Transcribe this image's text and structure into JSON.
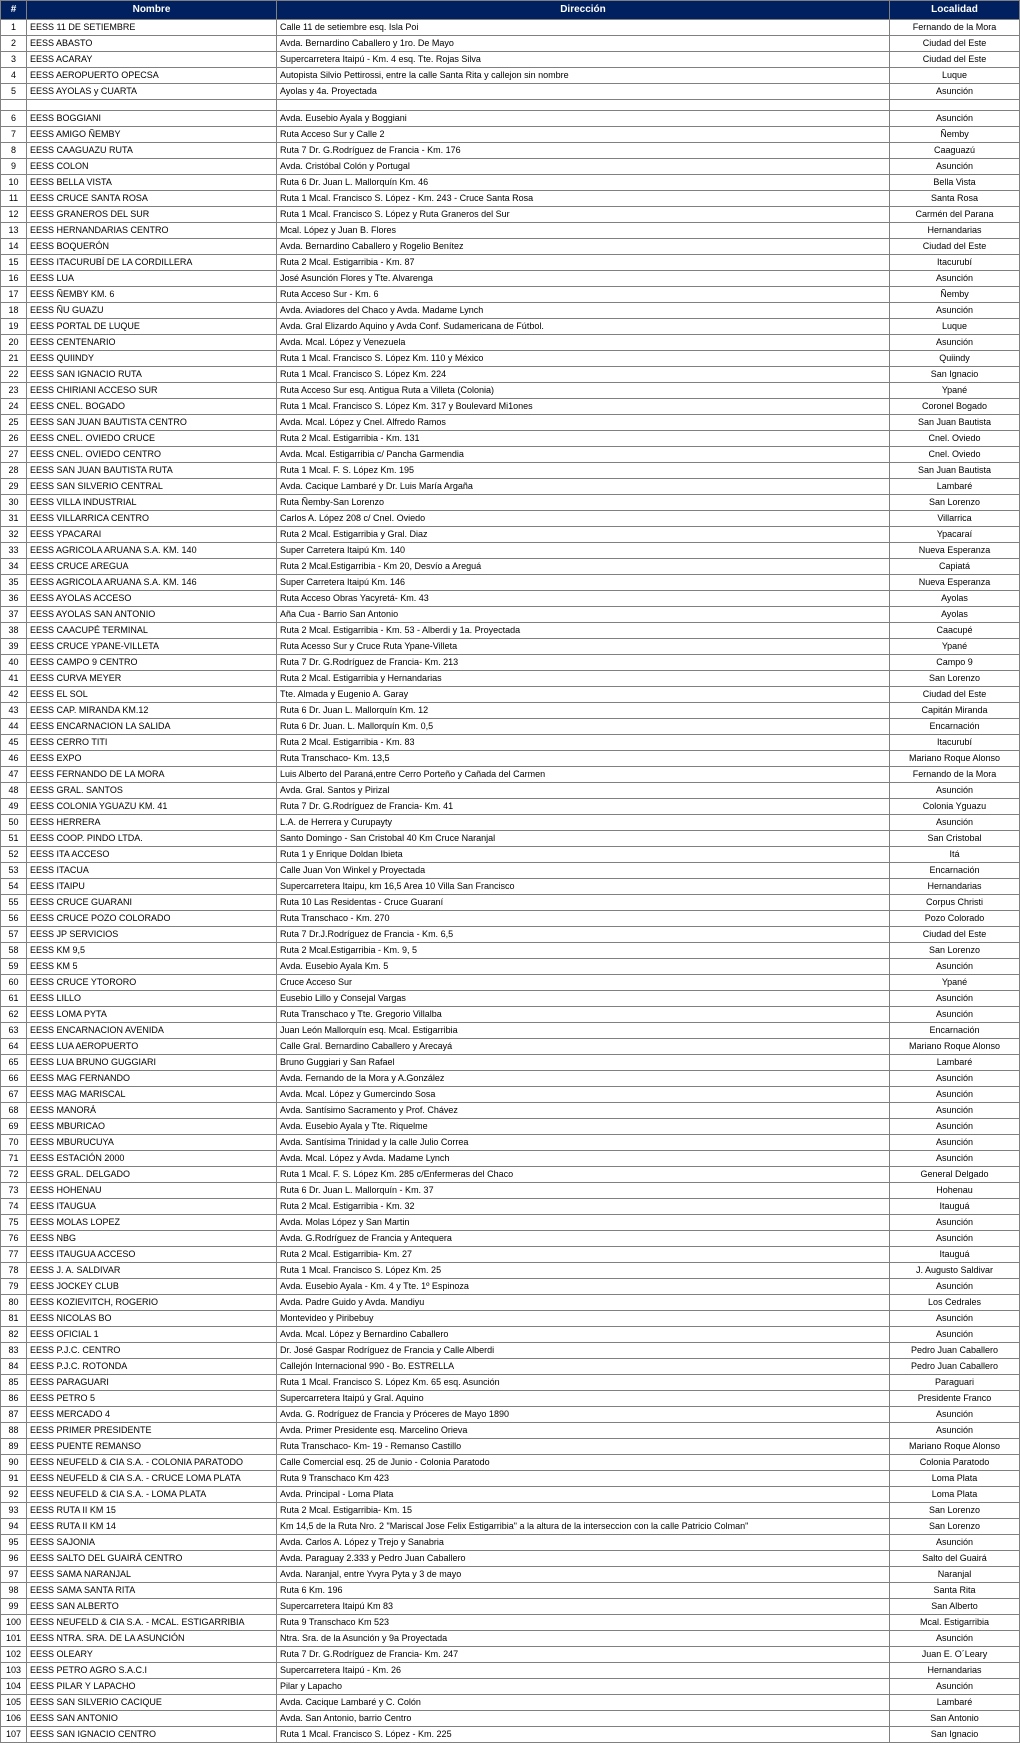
{
  "headers": {
    "num": "#",
    "nombre": "Nombre",
    "direccion": "Dirección",
    "localidad": "Localidad"
  },
  "rows": [
    {
      "n": "1",
      "nombre": "EESS 11 DE SETIEMBRE",
      "direccion": "Calle 11 de setiembre esq. Isla Poi",
      "localidad": "Fernando de la Mora"
    },
    {
      "n": "2",
      "nombre": "EESS ABASTO",
      "direccion": "Avda. Bernardino Caballero y 1ro. De Mayo",
      "localidad": "Ciudad del Este"
    },
    {
      "n": "3",
      "nombre": "EESS ACARAY",
      "direccion": "Supercarretera Itaipú - Km. 4 esq. Tte. Rojas Silva",
      "localidad": "Ciudad del Este"
    },
    {
      "n": "4",
      "nombre": "EESS AEROPUERTO OPECSA",
      "direccion": "Autopista Silvio Pettirossi, entre la calle Santa Rita y callejon sin nombre",
      "localidad": "Luque"
    },
    {
      "n": "5",
      "nombre": "EESS AYOLAS y CUARTA",
      "direccion": "Ayolas y 4a. Proyectada",
      "localidad": "Asunción"
    },
    {
      "n": "6",
      "nombre": "",
      "direccion": "",
      "localidad": "",
      "blank": true
    },
    {
      "n": "6",
      "nombre": "EESS BOGGIANI",
      "direccion": "Avda. Eusebio Ayala y Boggiani",
      "localidad": "Asunción"
    },
    {
      "n": "7",
      "nombre": "EESS AMIGO ÑEMBY",
      "direccion": "Ruta Acceso Sur y Calle 2",
      "localidad": "Ñemby"
    },
    {
      "n": "8",
      "nombre": "EESS CAAGUAZU RUTA",
      "direccion": "Ruta 7 Dr. G.Rodríguez de Francia - Km. 176",
      "localidad": "Caaguazú"
    },
    {
      "n": "9",
      "nombre": "EESS COLON",
      "direccion": "Avda. Cristóbal Colón y Portugal",
      "localidad": "Asunción"
    },
    {
      "n": "10",
      "nombre": "EESS BELLA VISTA",
      "direccion": "Ruta 6 Dr. Juan L. Mallorquín Km. 46",
      "localidad": "Bella Vista"
    },
    {
      "n": "11",
      "nombre": "EESS CRUCE SANTA ROSA",
      "direccion": "Ruta 1 Mcal. Francisco S. López - Km. 243 - Cruce Santa Rosa",
      "localidad": "Santa Rosa"
    },
    {
      "n": "12",
      "nombre": "EESS GRANEROS DEL SUR",
      "direccion": "Ruta 1 Mcal. Francisco S. López y Ruta Graneros del Sur",
      "localidad": "Carmén del Parana"
    },
    {
      "n": "13",
      "nombre": "EESS HERNANDARIAS CENTRO",
      "direccion": "Mcal. López y Juan B. Flores",
      "localidad": "Hernandarias"
    },
    {
      "n": "14",
      "nombre": "EESS BOQUERÓN",
      "direccion": "Avda. Bernardino Caballero y Rogelio Benítez",
      "localidad": "Ciudad del Este"
    },
    {
      "n": "15",
      "nombre": "EESS ITACURUBÍ DE LA CORDILLERA",
      "direccion": "Ruta 2 Mcal. Estigarribia - Km. 87",
      "localidad": "Itacurubí"
    },
    {
      "n": "16",
      "nombre": "EESS LUA",
      "direccion": "José Asunción Flores y Tte. Alvarenga",
      "localidad": "Asunción"
    },
    {
      "n": "17",
      "nombre": "EESS ÑEMBY KM. 6",
      "direccion": "Ruta Acceso Sur - Km. 6",
      "localidad": "Ñemby"
    },
    {
      "n": "18",
      "nombre": "EESS ÑU GUAZU",
      "direccion": "Avda. Aviadores del Chaco y Avda. Madame Lynch",
      "localidad": "Asunción"
    },
    {
      "n": "19",
      "nombre": "EESS PORTAL DE LUQUE",
      "direccion": "Avda. Gral Elizardo Aquino y Avda Conf. Sudamericana de Fútbol.",
      "localidad": "Luque"
    },
    {
      "n": "20",
      "nombre": "EESS CENTENARIO",
      "direccion": "Avda. Mcal. López y Venezuela",
      "localidad": "Asunción"
    },
    {
      "n": "21",
      "nombre": "EESS QUIINDY",
      "direccion": "Ruta 1 Mcal. Francisco S. López Km. 110 y México",
      "localidad": "Quiindy"
    },
    {
      "n": "22",
      "nombre": "EESS SAN IGNACIO RUTA",
      "direccion": "Ruta 1 Mcal. Francisco S. López  Km. 224",
      "localidad": "San Ignacio"
    },
    {
      "n": "23",
      "nombre": "EESS CHIRIANI ACCESO SUR",
      "direccion": "Ruta Acceso Sur esq. Antigua Ruta a Villeta (Colonia)",
      "localidad": "Ypané"
    },
    {
      "n": "24",
      "nombre": "EESS CNEL. BOGADO",
      "direccion": "Ruta 1 Mcal. Francisco S. López Km. 317 y Boulevard Mi1ones",
      "localidad": "Coronel Bogado"
    },
    {
      "n": "25",
      "nombre": "EESS SAN JUAN BAUTISTA CENTRO",
      "direccion": "Avda. Mcal. López y Cnel. Alfredo Ramos",
      "localidad": "San Juan Bautista"
    },
    {
      "n": "26",
      "nombre": "EESS CNEL. OVIEDO CRUCE",
      "direccion": "Ruta 2 Mcal. Estigarribia - Km. 131",
      "localidad": "Cnel. Oviedo"
    },
    {
      "n": "27",
      "nombre": "EESS CNEL. OVIEDO CENTRO",
      "direccion": "Avda. Mcal. Estigarribia c/ Pancha Garmendia",
      "localidad": "Cnel. Oviedo"
    },
    {
      "n": "28",
      "nombre": "EESS SAN JUAN BAUTISTA RUTA",
      "direccion": "Ruta 1 Mcal. F. S. López Km. 195",
      "localidad": "San Juan Bautista"
    },
    {
      "n": "29",
      "nombre": "EESS SAN SILVERIO CENTRAL",
      "direccion": "Avda. Cacique Lambaré y Dr. Luis María Argaña",
      "localidad": "Lambaré"
    },
    {
      "n": "30",
      "nombre": "EESS VILLA INDUSTRIAL",
      "direccion": "Ruta Ñemby-San Lorenzo",
      "localidad": "San Lorenzo"
    },
    {
      "n": "31",
      "nombre": "EESS VILLARRICA CENTRO",
      "direccion": "Carlos A. López  208 c/ Cnel. Oviedo",
      "localidad": "Villarrica"
    },
    {
      "n": "32",
      "nombre": "EESS YPACARAI",
      "direccion": "Ruta 2 Mcal. Estigarribia y Gral. Diaz",
      "localidad": "Ypacaraí"
    },
    {
      "n": "33",
      "nombre": "EESS AGRICOLA ARUANA S.A. KM. 140",
      "direccion": "Super Carretera Itaipú Km. 140",
      "localidad": "Nueva Esperanza"
    },
    {
      "n": "34",
      "nombre": "EESS CRUCE AREGUA",
      "direccion": "Ruta 2 Mcal.Estigarribia -  Km 20, Desvío a Areguá",
      "localidad": "Capiatá"
    },
    {
      "n": "35",
      "nombre": "EESS AGRICOLA ARUANA S.A. KM. 146",
      "direccion": "Super Carretera Itaipú Km. 146",
      "localidad": "Nueva Esperanza"
    },
    {
      "n": "36",
      "nombre": "EESS AYOLAS ACCESO",
      "direccion": "Ruta Acceso Obras Yacyretá- Km. 43",
      "localidad": "Ayolas"
    },
    {
      "n": "37",
      "nombre": "EESS AYOLAS SAN ANTONIO",
      "direccion": "Aña Cua - Barrio San Antonio",
      "localidad": "Ayolas"
    },
    {
      "n": "38",
      "nombre": "EESS CAACUPÉ TERMINAL",
      "direccion": "Ruta 2 Mcal. Estigarribia - Km. 53 - Alberdi y 1a. Proyectada",
      "localidad": "Caacupé"
    },
    {
      "n": "39",
      "nombre": "EESS CRUCE YPANE-VILLETA",
      "direccion": "Ruta Acesso Sur y Cruce Ruta Ypane-Villeta",
      "localidad": "Ypané"
    },
    {
      "n": "40",
      "nombre": "EESS CAMPO 9 CENTRO",
      "direccion": "Ruta 7 Dr. G.Rodríguez de Francia- Km. 213",
      "localidad": "Campo 9"
    },
    {
      "n": "41",
      "nombre": "EESS CURVA MEYER",
      "direccion": "Ruta 2 Mcal. Estigarribia y Hernandarias",
      "localidad": "San Lorenzo"
    },
    {
      "n": "42",
      "nombre": "EESS EL SOL",
      "direccion": "Tte. Almada y Eugenio A. Garay",
      "localidad": "Ciudad del Este"
    },
    {
      "n": "43",
      "nombre": "EESS CAP. MIRANDA KM.12",
      "direccion": "Ruta 6 Dr. Juan L. Mallorquín Km. 12",
      "localidad": "Capitán Miranda"
    },
    {
      "n": "44",
      "nombre": "EESS ENCARNACION LA SALIDA",
      "direccion": "Ruta 6 Dr. Juan. L. Mallorquín  Km. 0,5",
      "localidad": "Encarnación"
    },
    {
      "n": "45",
      "nombre": "EESS CERRO TITI",
      "direccion": "Ruta 2 Mcal. Estigarribia - Km. 83",
      "localidad": "Itacurubí"
    },
    {
      "n": "46",
      "nombre": "EESS EXPO",
      "direccion": "Ruta Transchaco- Km. 13,5",
      "localidad": "Mariano Roque Alonso"
    },
    {
      "n": "47",
      "nombre": "EESS FERNANDO DE LA MORA",
      "direccion": "Luis Alberto del Paraná,entre Cerro Porteño y Cañada del Carmen",
      "localidad": "Fernando de la Mora"
    },
    {
      "n": "48",
      "nombre": "EESS GRAL. SANTOS",
      "direccion": "Avda. Gral. Santos y Pirizal",
      "localidad": "Asunción"
    },
    {
      "n": "49",
      "nombre": "EESS COLONIA YGUAZU KM. 41",
      "direccion": "Ruta 7 Dr. G.Rodríguez de Francia- Km. 41",
      "localidad": "Colonia Yguazu"
    },
    {
      "n": "50",
      "nombre": "EESS HERRERA",
      "direccion": "L.A. de Herrera y Curupayty",
      "localidad": "Asunción"
    },
    {
      "n": "51",
      "nombre": "EESS COOP. PINDO LTDA.",
      "direccion": "Santo Domingo - San Cristobal 40 Km Cruce Naranjal",
      "localidad": "San Cristobal"
    },
    {
      "n": "52",
      "nombre": "EESS ITA ACCESO",
      "direccion": "Ruta 1 y Enrique Doldan Ibieta",
      "localidad": "Itá"
    },
    {
      "n": "53",
      "nombre": "EESS ITACUA",
      "direccion": "Calle Juan Von Winkel y Proyectada",
      "localidad": "Encarnación"
    },
    {
      "n": "54",
      "nombre": "EESS ITAIPU",
      "direccion": "Supercarretera Itaipu, km 16,5  Area 10 Villa San Francisco",
      "localidad": "Hernandarias"
    },
    {
      "n": "55",
      "nombre": "EESS CRUCE GUARANI",
      "direccion": "Ruta 10 Las Residentas - Cruce Guaraní",
      "localidad": "Corpus Christi"
    },
    {
      "n": "56",
      "nombre": "EESS CRUCE POZO COLORADO",
      "direccion": "Ruta Transchaco - Km. 270",
      "localidad": "Pozo Colorado"
    },
    {
      "n": "57",
      "nombre": "EESS JP SERVICIOS",
      "direccion": "Ruta 7 Dr.J.Rodríguez de Francia - Km. 6,5",
      "localidad": "Ciudad del Este"
    },
    {
      "n": "58",
      "nombre": "EESS KM 9,5",
      "direccion": "Ruta 2 Mcal.Estigarribia - Km. 9, 5",
      "localidad": "San Lorenzo"
    },
    {
      "n": "59",
      "nombre": "EESS KM 5",
      "direccion": "Avda. Eusebio Ayala Km. 5",
      "localidad": "Asunción"
    },
    {
      "n": "60",
      "nombre": "EESS CRUCE YTORORO",
      "direccion": "Cruce Acceso Sur",
      "localidad": "Ypané"
    },
    {
      "n": "61",
      "nombre": "EESS LILLO",
      "direccion": "Eusebio Lillo y Consejal Vargas",
      "localidad": "Asunción"
    },
    {
      "n": "62",
      "nombre": "EESS LOMA PYTA",
      "direccion": "Ruta Transchaco y Tte. Gregorio Villalba",
      "localidad": "Asunción"
    },
    {
      "n": "63",
      "nombre": "EESS ENCARNACION AVENIDA",
      "direccion": "Juan León Mallorquín esq. Mcal. Estigarribia",
      "localidad": "Encarnación"
    },
    {
      "n": "64",
      "nombre": "EESS LUA AEROPUERTO",
      "direccion": "Calle Gral. Bernardino Caballero y Arecayá",
      "localidad": "Mariano Roque Alonso"
    },
    {
      "n": "65",
      "nombre": "EESS LUA BRUNO GUGGIARI",
      "direccion": "Bruno Guggiari y San Rafael",
      "localidad": "Lambaré"
    },
    {
      "n": "66",
      "nombre": "EESS MAG FERNANDO",
      "direccion": "Avda. Fernando de la Mora y A.González",
      "localidad": "Asunción"
    },
    {
      "n": "67",
      "nombre": "EESS MAG MARISCAL",
      "direccion": "Avda. Mcal. López y Gumercindo  Sosa",
      "localidad": "Asunción"
    },
    {
      "n": "68",
      "nombre": "EESS MANORÁ",
      "direccion": "Avda. Santísimo Sacramento y Prof. Chávez",
      "localidad": "Asunción"
    },
    {
      "n": "69",
      "nombre": "EESS MBURICAO",
      "direccion": "Avda. Eusebio Ayala y Tte. Riquelme",
      "localidad": "Asunción"
    },
    {
      "n": "70",
      "nombre": "EESS MBURUCUYA",
      "direccion": "Avda. Santísima Trinidad y la calle Julio Correa",
      "localidad": "Asunción"
    },
    {
      "n": "71",
      "nombre": "EESS ESTACIÓN 2000",
      "direccion": "Avda. Mcal. López y Avda. Madame Lynch",
      "localidad": "Asunción"
    },
    {
      "n": "72",
      "nombre": "EESS GRAL. DELGADO",
      "direccion": "Ruta 1 Mcal. F. S. López Km. 285 c/Enfermeras del Chaco",
      "localidad": "General Delgado"
    },
    {
      "n": "73",
      "nombre": "EESS HOHENAU",
      "direccion": "Ruta 6 Dr. Juan L. Mallorquín - Km. 37",
      "localidad": "Hohenau"
    },
    {
      "n": "74",
      "nombre": "EESS ITAUGUA",
      "direccion": "Ruta 2  Mcal. Estigarribia - Km. 32",
      "localidad": "Itauguá"
    },
    {
      "n": "75",
      "nombre": "EESS MOLAS LOPEZ",
      "direccion": "Avda. Molas López y San Martin",
      "localidad": "Asunción"
    },
    {
      "n": "76",
      "nombre": "EESS NBG",
      "direccion": "Avda. G.Rodríguez de Francia y Antequera",
      "localidad": "Asunción"
    },
    {
      "n": "77",
      "nombre": "EESS ITAUGUA ACCESO",
      "direccion": "Ruta 2 Mcal. Estigarribia- Km. 27",
      "localidad": "Itauguá"
    },
    {
      "n": "78",
      "nombre": "EESS J. A. SALDIVAR",
      "direccion": "Ruta 1 Mcal. Francisco S. López Km. 25",
      "localidad": "J. Augusto Saldivar"
    },
    {
      "n": "79",
      "nombre": "EESS JOCKEY CLUB",
      "direccion": "Avda. Eusebio Ayala - Km. 4 y Tte. 1º Espinoza",
      "localidad": "Asunción"
    },
    {
      "n": "80",
      "nombre": "EESS KOZIEVITCH, ROGERIO",
      "direccion": "Avda. Padre Guido y Avda. Mandiyu",
      "localidad": "Los Cedrales"
    },
    {
      "n": "81",
      "nombre": "EESS NICOLAS BO",
      "direccion": "Montevideo y Piribebuy",
      "localidad": "Asunción"
    },
    {
      "n": "82",
      "nombre": "EESS OFICIAL 1",
      "direccion": "Avda. Mcal. López y Bernardino Caballero",
      "localidad": "Asunción"
    },
    {
      "n": "83",
      "nombre": "EESS P.J.C. CENTRO",
      "direccion": "Dr. José Gaspar Rodríguez de Francia y Calle Alberdi",
      "localidad": "Pedro Juan Caballero"
    },
    {
      "n": "84",
      "nombre": "EESS P.J.C. ROTONDA",
      "direccion": "Callejón Internacional 990 -  Bo. ESTRELLA",
      "localidad": "Pedro Juan Caballero"
    },
    {
      "n": "85",
      "nombre": "EESS PARAGUARI",
      "direccion": "Ruta 1 Mcal. Francisco S. López Km. 65 esq. Asunción",
      "localidad": "Paraguari"
    },
    {
      "n": "86",
      "nombre": "EESS PETRO 5",
      "direccion": "Supercarretera Itaipú y Gral. Aquino",
      "localidad": "Presidente Franco"
    },
    {
      "n": "87",
      "nombre": "EESS MERCADO 4",
      "direccion": "Avda. G. Rodríguez de Francia y Próceres de Mayo 1890",
      "localidad": "Asunción"
    },
    {
      "n": "88",
      "nombre": "EESS PRIMER PRESIDENTE",
      "direccion": "Avda. Primer Presidente esq. Marcelino Orieva",
      "localidad": "Asunción"
    },
    {
      "n": "89",
      "nombre": "EESS PUENTE REMANSO",
      "direccion": "Ruta Transchaco- Km- 19 - Remanso Castillo",
      "localidad": "Mariano Roque Alonso"
    },
    {
      "n": "90",
      "nombre": "EESS NEUFELD & CIA S.A. - COLONIA PARATODO",
      "direccion": "Calle Comercial esq. 25 de Junio - Colonia Paratodo",
      "localidad": "Colonia Paratodo"
    },
    {
      "n": "91",
      "nombre": "EESS NEUFELD & CIA S.A. - CRUCE LOMA PLATA",
      "direccion": "Ruta 9 Transchaco Km 423",
      "localidad": "Loma Plata"
    },
    {
      "n": "92",
      "nombre": "EESS NEUFELD & CIA S.A. - LOMA PLATA",
      "direccion": "Avda. Principal - Loma Plata",
      "localidad": "Loma Plata"
    },
    {
      "n": "93",
      "nombre": "EESS RUTA II KM 15",
      "direccion": "Ruta 2 Mcal. Estigarribia- Km. 15",
      "localidad": "San Lorenzo"
    },
    {
      "n": "94",
      "nombre": "EESS RUTA II KM 14",
      "direccion": "Km 14,5 de la Ruta Nro. 2 \"Mariscal Jose Felix Estigarribia\" a la altura de la interseccion con la calle Patricio Colman\"",
      "localidad": "San Lorenzo"
    },
    {
      "n": "95",
      "nombre": "EESS SAJONIA",
      "direccion": "Avda. Carlos A. López y Trejo y Sanabria",
      "localidad": "Asunción"
    },
    {
      "n": "96",
      "nombre": "EESS SALTO DEL GUAIRÁ CENTRO",
      "direccion": "Avda. Paraguay 2.333 y Pedro Juan Caballero",
      "localidad": "Salto del Guairá"
    },
    {
      "n": "97",
      "nombre": "EESS SAMA NARANJAL",
      "direccion": "Avda. Naranjal, entre Yvyra Pyta y 3 de mayo",
      "localidad": "Naranjal"
    },
    {
      "n": "98",
      "nombre": "EESS SAMA SANTA RITA",
      "direccion": "Ruta 6 Km. 196",
      "localidad": "Santa Rita"
    },
    {
      "n": "99",
      "nombre": "EESS SAN ALBERTO",
      "direccion": "Supercarretera Itaipú Km 83",
      "localidad": "San Alberto"
    },
    {
      "n": "100",
      "nombre": "EESS NEUFELD & CIA S.A. - MCAL. ESTIGARRIBIA",
      "direccion": "Ruta 9 Transchaco Km 523",
      "localidad": "Mcal. Estigarribia"
    },
    {
      "n": "101",
      "nombre": "EESS NTRA. SRA. DE LA ASUNCIÓN",
      "direccion": "Ntra. Sra. de la Asunción y 9a Proyectada",
      "localidad": "Asunción"
    },
    {
      "n": "102",
      "nombre": "EESS OLEARY",
      "direccion": "Ruta 7 Dr. G.Rodríguez de Francia- Km. 247",
      "localidad": "Juan E. O´Leary"
    },
    {
      "n": "103",
      "nombre": "EESS PETRO AGRO S.A.C.I",
      "direccion": "Supercarretera Itaipú - Km. 26",
      "localidad": "Hernandarias"
    },
    {
      "n": "104",
      "nombre": "EESS PILAR Y LAPACHO",
      "direccion": "Pilar y Lapacho",
      "localidad": "Asunción"
    },
    {
      "n": "105",
      "nombre": "EESS SAN SILVERIO CACIQUE",
      "direccion": "Avda. Cacique Lambaré y C. Colón",
      "localidad": "Lambaré"
    },
    {
      "n": "106",
      "nombre": "EESS SAN ANTONIO",
      "direccion": "Avda. San Antonio, barrio Centro",
      "localidad": "San Antonio"
    },
    {
      "n": "107",
      "nombre": "EESS SAN IGNACIO CENTRO",
      "direccion": "Ruta 1 Mcal. Francisco S. López - Km. 225",
      "localidad": "San Ignacio"
    }
  ]
}
